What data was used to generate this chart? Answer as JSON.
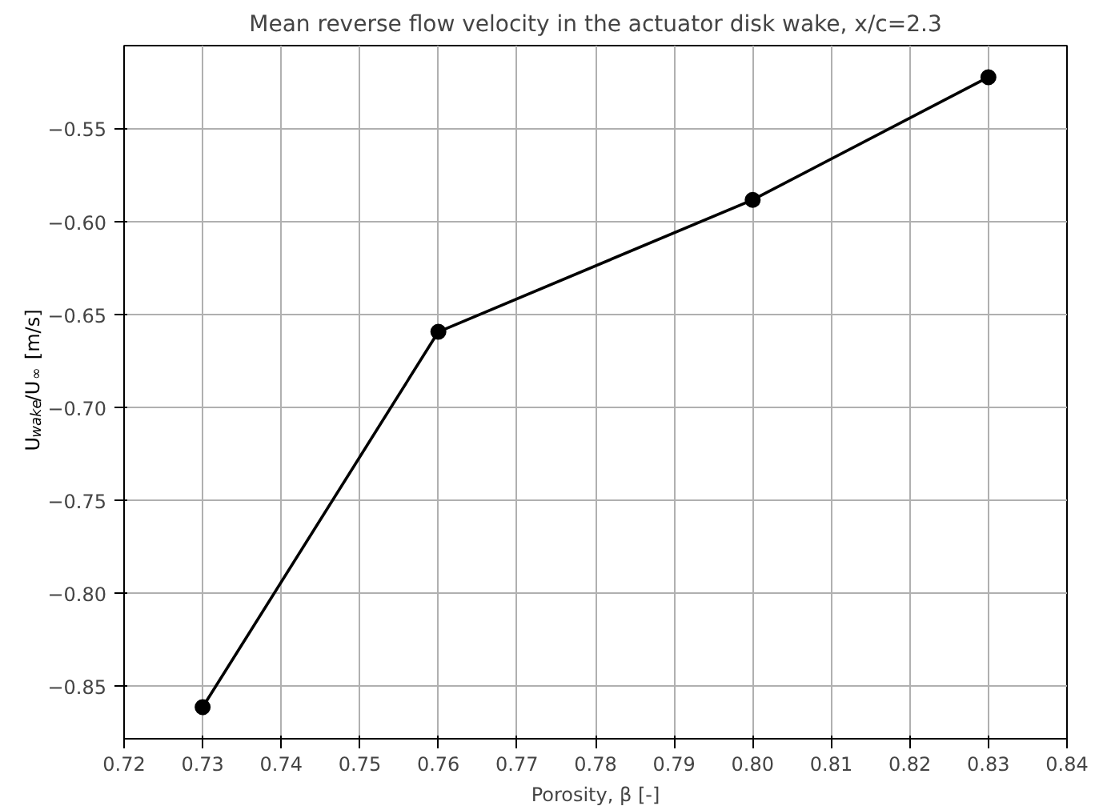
{
  "chart_data": {
    "type": "line",
    "title": "Mean reverse flow velocity in the actuator disk wake, x/c=2.3",
    "xlabel": "Porosity, β [-]",
    "ylabel": "U$_{wake}$/U$_{∞}$ [m/s]",
    "x": [
      0.73,
      0.76,
      0.8,
      0.83
    ],
    "series": [
      {
        "color": "#000000",
        "values": [
          -0.861,
          -0.659,
          -0.588,
          -0.522
        ]
      }
    ],
    "xlim": [
      0.72,
      0.84
    ],
    "ylim": [
      -0.878,
      -0.505
    ],
    "xticks": [
      {
        "value": 0.72,
        "label": "0.72"
      },
      {
        "value": 0.73,
        "label": "0.73"
      },
      {
        "value": 0.74,
        "label": "0.74"
      },
      {
        "value": 0.75,
        "label": "0.75"
      },
      {
        "value": 0.76,
        "label": "0.76"
      },
      {
        "value": 0.77,
        "label": "0.77"
      },
      {
        "value": 0.78,
        "label": "0.78"
      },
      {
        "value": 0.79,
        "label": "0.79"
      },
      {
        "value": 0.8,
        "label": "0.80"
      },
      {
        "value": 0.81,
        "label": "0.81"
      },
      {
        "value": 0.82,
        "label": "0.82"
      },
      {
        "value": 0.83,
        "label": "0.83"
      },
      {
        "value": 0.84,
        "label": "0.84"
      }
    ],
    "yticks": [
      {
        "value": -0.85,
        "label": "−0.85"
      },
      {
        "value": -0.8,
        "label": "−0.80"
      },
      {
        "value": -0.75,
        "label": "−0.75"
      },
      {
        "value": -0.7,
        "label": "−0.70"
      },
      {
        "value": -0.65,
        "label": "−0.65"
      },
      {
        "value": -0.6,
        "label": "−0.60"
      },
      {
        "value": -0.55,
        "label": "−0.55"
      }
    ],
    "grid": true,
    "marker": "circle",
    "line_style": "solid"
  }
}
